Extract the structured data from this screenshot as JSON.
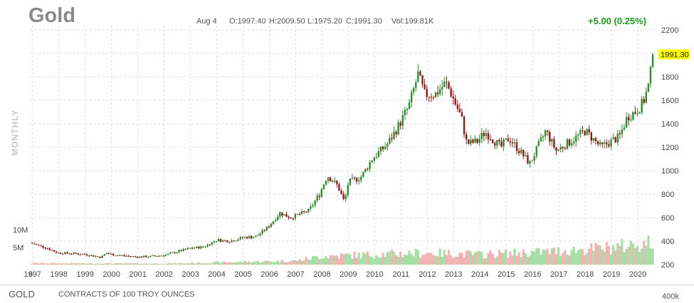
{
  "header": {
    "title": "Gold",
    "date": "Aug 4",
    "open": "O:1997.40",
    "high": "H:2009.50",
    "low": "L:1975.20",
    "close": "C:1991.30",
    "volume": "Vol:199.81K",
    "change": "+5.00 (0.25%)",
    "period": "MONTHLY"
  },
  "footer": {
    "symbol": "GOLD",
    "contract": "CONTRACTS OF 100 TROY OUNCES",
    "volume_label": "400k"
  },
  "colors": {
    "up": "#2e8b2e",
    "down": "#8b1a1a",
    "volume_up": "#a6dea6",
    "volume_down": "#f2b3b3",
    "price_badge": "#ffff00",
    "change": "#1c9a1c"
  },
  "chart_data": {
    "type": "candlestick",
    "x_tick_labels": [
      "6",
      "1997",
      "1998",
      "1999",
      "2000",
      "2001",
      "2002",
      "2003",
      "2004",
      "2005",
      "2006",
      "2007",
      "2008",
      "2009",
      "2010",
      "2011",
      "2012",
      "2013",
      "2014",
      "2015",
      "2016",
      "2017",
      "2018",
      "2019",
      "2020"
    ],
    "x_range": [
      1996.9,
      2020.7
    ],
    "y_ticks": [
      200,
      400,
      600,
      800,
      1000,
      1200,
      1400,
      1600,
      1800,
      2000,
      2200
    ],
    "ylim": [
      200,
      2200
    ],
    "volume_tick_labels": [
      "10M",
      "5M"
    ],
    "last_price_label": "1991.30",
    "last_price": 1991.3,
    "grid": true,
    "price_anchors": [
      [
        1996.9,
        385
      ],
      [
        1997.5,
        345
      ],
      [
        1997.95,
        300
      ],
      [
        1998.5,
        295
      ],
      [
        1999.0,
        287
      ],
      [
        1999.6,
        262
      ],
      [
        1999.8,
        300
      ],
      [
        2000.0,
        285
      ],
      [
        2000.5,
        275
      ],
      [
        2001.0,
        265
      ],
      [
        2001.5,
        270
      ],
      [
        2002.0,
        280
      ],
      [
        2002.5,
        310
      ],
      [
        2003.0,
        340
      ],
      [
        2003.5,
        350
      ],
      [
        2004.0,
        410
      ],
      [
        2004.5,
        400
      ],
      [
        2005.0,
        430
      ],
      [
        2005.5,
        440
      ],
      [
        2005.95,
        520
      ],
      [
        2006.4,
        640
      ],
      [
        2006.8,
        600
      ],
      [
        2007.5,
        660
      ],
      [
        2007.9,
        800
      ],
      [
        2008.2,
        960
      ],
      [
        2008.6,
        870
      ],
      [
        2008.85,
        730
      ],
      [
        2009.0,
        900
      ],
      [
        2009.5,
        950
      ],
      [
        2009.9,
        1100
      ],
      [
        2010.5,
        1230
      ],
      [
        2010.95,
        1400
      ],
      [
        2011.3,
        1550
      ],
      [
        2011.65,
        1820
      ],
      [
        2011.9,
        1650
      ],
      [
        2012.3,
        1650
      ],
      [
        2012.7,
        1750
      ],
      [
        2012.9,
        1660
      ],
      [
        2013.3,
        1450
      ],
      [
        2013.5,
        1230
      ],
      [
        2013.9,
        1250
      ],
      [
        2014.2,
        1330
      ],
      [
        2014.8,
        1200
      ],
      [
        2015.1,
        1280
      ],
      [
        2015.9,
        1060
      ],
      [
        2016.5,
        1340
      ],
      [
        2016.9,
        1170
      ],
      [
        2017.5,
        1260
      ],
      [
        2018.0,
        1340
      ],
      [
        2018.6,
        1200
      ],
      [
        2018.9,
        1240
      ],
      [
        2019.3,
        1290
      ],
      [
        2019.6,
        1460
      ],
      [
        2019.95,
        1510
      ],
      [
        2020.2,
        1580
      ],
      [
        2020.4,
        1720
      ],
      [
        2020.6,
        1991.3
      ]
    ],
    "volume_anchors": [
      [
        1996.9,
        0.4
      ],
      [
        2002.0,
        0.3
      ],
      [
        2005.0,
        0.8
      ],
      [
        2007.0,
        1.1
      ],
      [
        2008.0,
        2.5
      ],
      [
        2010.0,
        3.0
      ],
      [
        2012.0,
        3.5
      ],
      [
        2014.0,
        3.0
      ],
      [
        2016.0,
        3.6
      ],
      [
        2018.0,
        4.5
      ],
      [
        2019.0,
        5.0
      ],
      [
        2020.4,
        6.5
      ]
    ]
  }
}
